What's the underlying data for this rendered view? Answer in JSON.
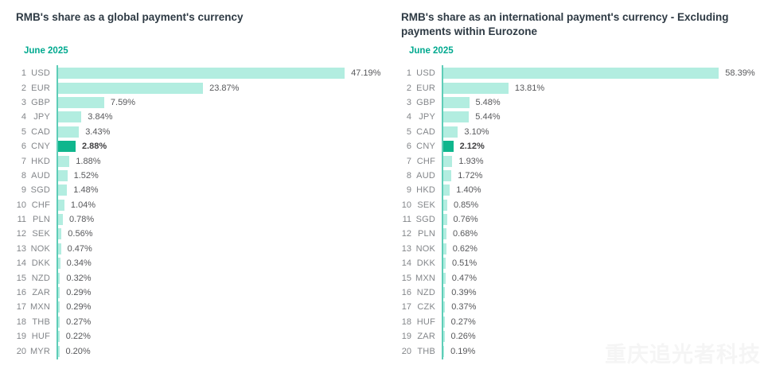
{
  "watermark": {
    "text": "重庆追光者科技"
  },
  "colors": {
    "title": "#2e3a44",
    "subtitle": "#00a98f",
    "label": "#83868a",
    "value": "#57585b",
    "value_highlight": "#414042",
    "bar": "#b2ede0",
    "bar_highlight": "#0fb68d",
    "axis": "#5ecdb8",
    "watermark": "#f5f5f5",
    "background": "#ffffff"
  },
  "chart_data": [
    {
      "type": "bar",
      "orientation": "horizontal",
      "title": "RMB's share as a global payment's currency",
      "subtitle": "June 2025",
      "highlight_category": "CNY",
      "ranks": [
        1,
        2,
        3,
        4,
        5,
        6,
        7,
        8,
        9,
        10,
        11,
        12,
        13,
        14,
        15,
        16,
        17,
        18,
        19,
        20
      ],
      "categories": [
        "USD",
        "EUR",
        "GBP",
        "JPY",
        "CAD",
        "CNY",
        "HKD",
        "AUD",
        "SGD",
        "CHF",
        "PLN",
        "SEK",
        "NOK",
        "DKK",
        "NZD",
        "ZAR",
        "MXN",
        "THB",
        "HUF",
        "MYR"
      ],
      "values": [
        47.19,
        23.87,
        7.59,
        3.84,
        3.43,
        2.88,
        1.88,
        1.52,
        1.48,
        1.04,
        0.78,
        0.56,
        0.47,
        0.34,
        0.32,
        0.29,
        0.29,
        0.27,
        0.22,
        0.2
      ],
      "value_labels": [
        "47.19%",
        "23.87%",
        "7.59%",
        "3.84%",
        "3.43%",
        "2.88%",
        "1.88%",
        "1.52%",
        "1.48%",
        "1.04%",
        "0.78%",
        "0.56%",
        "0.47%",
        "0.34%",
        "0.32%",
        "0.29%",
        "0.29%",
        "0.27%",
        "0.22%",
        "0.20%"
      ],
      "grid": false,
      "legend": false
    },
    {
      "type": "bar",
      "orientation": "horizontal",
      "title": "RMB's share as an international payment's currency - Excluding payments within Eurozone",
      "subtitle": "June 2025",
      "highlight_category": "CNY",
      "ranks": [
        1,
        2,
        3,
        4,
        5,
        6,
        7,
        8,
        9,
        10,
        11,
        12,
        13,
        14,
        15,
        16,
        17,
        18,
        19,
        20
      ],
      "categories": [
        "USD",
        "EUR",
        "GBP",
        "JPY",
        "CAD",
        "CNY",
        "CHF",
        "AUD",
        "HKD",
        "SEK",
        "SGD",
        "PLN",
        "NOK",
        "DKK",
        "MXN",
        "NZD",
        "CZK",
        "HUF",
        "ZAR",
        "THB"
      ],
      "values": [
        58.39,
        13.81,
        5.48,
        5.44,
        3.1,
        2.12,
        1.93,
        1.72,
        1.4,
        0.85,
        0.76,
        0.68,
        0.62,
        0.51,
        0.47,
        0.39,
        0.37,
        0.27,
        0.26,
        0.19
      ],
      "value_labels": [
        "58.39%",
        "13.81%",
        "5.48%",
        "5.44%",
        "3.10%",
        "2.12%",
        "1.93%",
        "1.72%",
        "1.40%",
        "0.85%",
        "0.76%",
        "0.68%",
        "0.62%",
        "0.51%",
        "0.47%",
        "0.39%",
        "0.37%",
        "0.27%",
        "0.26%",
        "0.19%"
      ],
      "grid": false,
      "legend": false
    }
  ]
}
